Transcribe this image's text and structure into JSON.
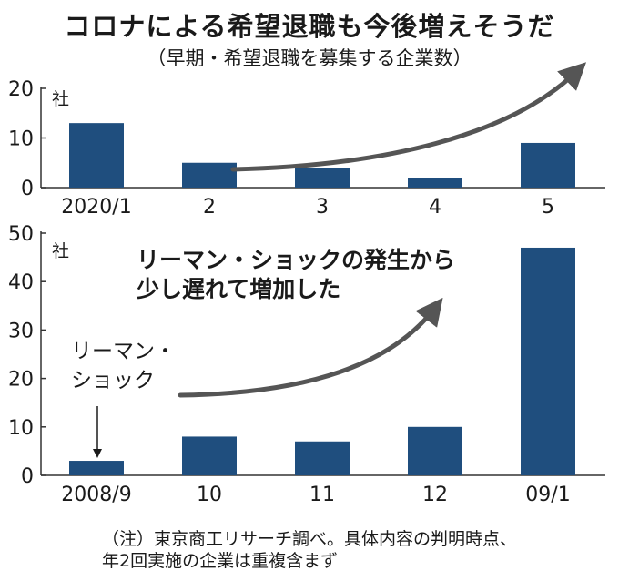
{
  "title": "コロナによる希望退職も今後増えそうだ",
  "subtitle": "（早期・希望退職を募集する企業数）",
  "colors": {
    "bar": "#1f4e7e",
    "axis": "#333333",
    "arrow": "#555555",
    "text": "#1a1a1a"
  },
  "chart_data": [
    {
      "type": "bar",
      "categories": [
        "2020/1",
        "2",
        "3",
        "4",
        "5"
      ],
      "values": [
        13,
        5,
        4,
        2,
        9
      ],
      "ylim": [
        0,
        20
      ],
      "yticks": [
        0,
        10,
        20
      ],
      "ylabel": "社",
      "annotations": [
        {
          "type": "arrow",
          "label": "",
          "icon": "trend-up-arrow-icon"
        }
      ]
    },
    {
      "type": "bar",
      "categories": [
        "2008/9",
        "10",
        "11",
        "12",
        "09/1"
      ],
      "values": [
        3,
        8,
        7,
        10,
        47
      ],
      "ylim": [
        0,
        50
      ],
      "yticks": [
        0,
        10,
        20,
        30,
        40,
        50
      ],
      "ylabel": "社",
      "annotations": [
        {
          "type": "text",
          "lines": [
            "リーマン・ショックの発生から",
            "少し遅れて増加した"
          ]
        },
        {
          "type": "text-arrow",
          "lines": [
            "リーマン・",
            "ショック"
          ],
          "target_category": "2008/9"
        }
      ]
    }
  ],
  "footnote": [
    "（注）東京商工リサーチ調べ。具体内容の判明時点、",
    "年2回実施の企業は重複含まず"
  ]
}
